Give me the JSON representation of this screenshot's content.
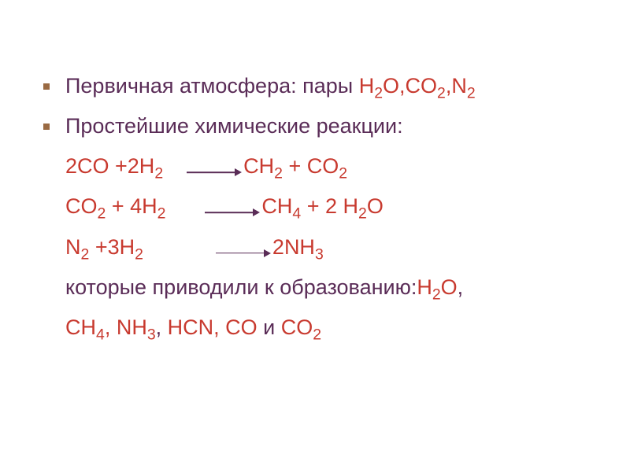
{
  "colors": {
    "text_main": "#5a2c57",
    "text_chem": "#c83a2f",
    "bullet": "#9a6a43",
    "background": "#ffffff"
  },
  "font": {
    "family": "Arial",
    "size_pt": 27
  },
  "bullet1": {
    "prefix": "Первичная атмосфера: пары ",
    "chem": "H₂O,CO₂,N₂"
  },
  "bullet2": {
    "text": "Простейшие химические реакции:"
  },
  "rx1": {
    "lhs_a": "2CO ",
    "lhs_b": "+2H",
    "lhs_sub": "2",
    "rhs": "CH₂ + CO₂"
  },
  "rx2": {
    "lhs": "CO₂ + 4H₂",
    "rhs": "CH₄ + 2 H₂O"
  },
  "rx3": {
    "lhs": "N₂ +3H₂",
    "rhs": "2NH₃"
  },
  "tail1": {
    "prefix": "которые приводили к образованию:",
    "chem": "H₂O",
    "suffix": ","
  },
  "tail2": {
    "chem1": "CH₄",
    "comma1": ", ",
    "chem2": "NH₃",
    "comma2": ", ",
    "chem3": "HCN, CO",
    "and": " и ",
    "chem4": "CO₂"
  }
}
